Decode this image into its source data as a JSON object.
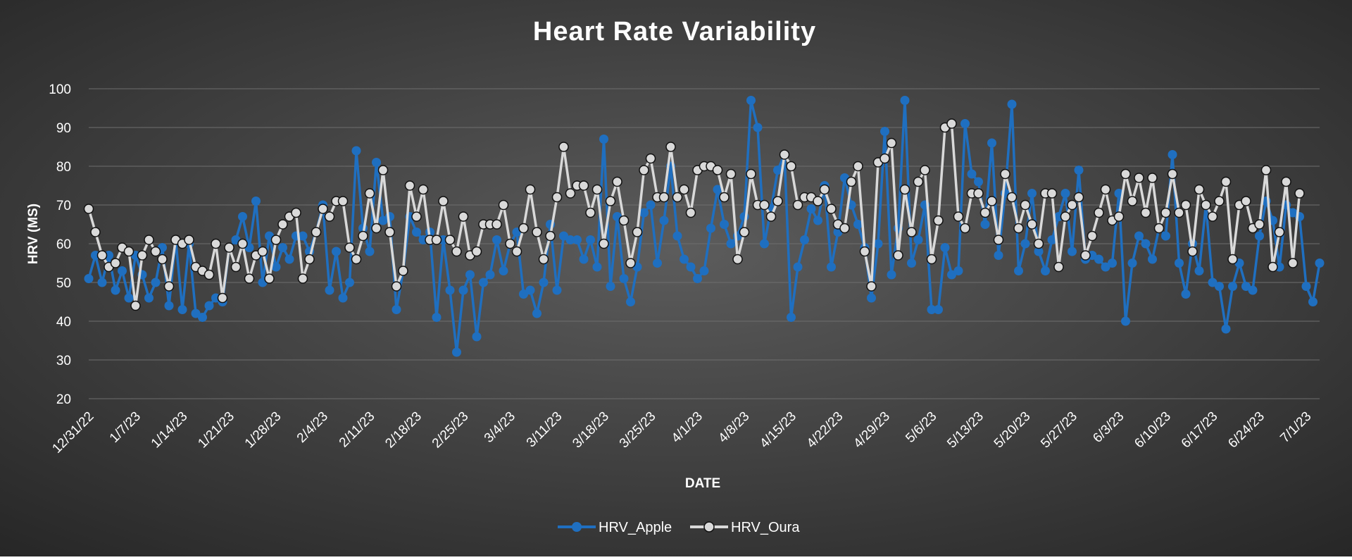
{
  "chart_data": {
    "type": "line",
    "title": "Heart Rate Variability",
    "xlabel": "DATE",
    "ylabel": "HRV (MS)",
    "ylim": [
      20,
      100
    ],
    "yticks": [
      20,
      30,
      40,
      50,
      60,
      70,
      80,
      90,
      100
    ],
    "grid": true,
    "legend_position": "bottom",
    "x_start": "12/31/22",
    "x_tick_labels": [
      "12/31/22",
      "1/7/23",
      "1/14/23",
      "1/21/23",
      "1/28/23",
      "2/4/23",
      "2/11/23",
      "2/18/23",
      "2/25/23",
      "3/4/23",
      "3/11/23",
      "3/18/23",
      "3/25/23",
      "4/1/23",
      "4/8/23",
      "4/15/23",
      "4/22/23",
      "4/29/23",
      "5/6/23",
      "5/13/23",
      "5/20/23",
      "5/27/23",
      "6/3/23",
      "6/10/23",
      "6/17/23",
      "6/24/23",
      "7/1/23"
    ],
    "colors": {
      "background_center": "#5c5c5c",
      "background_edge": "#262626",
      "gridline": "#6e6e6e"
    },
    "series": [
      {
        "name": "HRV_Apple",
        "color": "#1f6fc0",
        "marker": "circle-filled",
        "values": [
          51,
          57,
          50,
          57,
          48,
          53,
          46,
          57,
          52,
          46,
          50,
          59,
          44,
          61,
          43,
          60,
          42,
          41,
          44,
          46,
          45,
          59,
          61,
          67,
          59,
          71,
          50,
          62,
          54,
          59,
          56,
          62,
          62,
          58,
          63,
          70,
          48,
          58,
          46,
          50,
          84,
          64,
          58,
          81,
          66,
          67,
          43,
          53,
          67,
          63,
          61,
          63,
          41,
          61,
          48,
          32,
          48,
          52,
          36,
          50,
          52,
          61,
          53,
          60,
          63,
          47,
          48,
          42,
          50,
          65,
          48,
          62,
          61,
          61,
          56,
          61,
          54,
          87,
          49,
          67,
          51,
          45,
          54,
          68,
          70,
          55,
          66,
          80,
          62,
          56,
          54,
          51,
          53,
          64,
          74,
          65,
          60,
          62,
          67,
          97,
          90,
          60,
          69,
          79,
          83,
          41,
          54,
          61,
          69,
          66,
          75,
          54,
          63,
          77,
          70,
          65,
          59,
          46,
          60,
          89,
          52,
          64,
          97,
          55,
          61,
          70,
          43,
          43,
          59,
          52,
          53,
          91,
          78,
          76,
          65,
          86,
          57,
          73,
          96,
          53,
          60,
          73,
          58,
          53,
          61,
          67,
          73,
          58,
          79,
          56,
          57,
          56,
          54,
          55,
          73,
          40,
          55,
          62,
          60,
          56,
          64,
          62,
          83,
          55,
          47,
          60,
          53,
          70,
          50,
          49,
          38,
          49,
          55,
          49,
          48,
          62,
          71,
          66,
          54,
          70,
          68,
          67,
          49,
          45,
          55
        ]
      },
      {
        "name": "HRV_Oura",
        "color": "#d9d9d9",
        "marker": "circle-outline",
        "values": [
          69,
          63,
          57,
          54,
          55,
          59,
          58,
          44,
          57,
          61,
          58,
          56,
          49,
          61,
          60,
          61,
          54,
          53,
          52,
          60,
          46,
          59,
          54,
          60,
          51,
          57,
          58,
          51,
          61,
          65,
          67,
          68,
          51,
          56,
          63,
          69,
          67,
          71,
          71,
          59,
          56,
          62,
          73,
          64,
          79,
          63,
          49,
          53,
          75,
          67,
          74,
          61,
          61,
          71,
          61,
          58,
          67,
          57,
          58,
          65,
          65,
          65,
          70,
          60,
          58,
          64,
          74,
          63,
          56,
          62,
          72,
          85,
          73,
          75,
          75,
          68,
          74,
          60,
          71,
          76,
          66,
          55,
          63,
          79,
          82,
          72,
          72,
          85,
          72,
          74,
          68,
          79,
          80,
          80,
          79,
          72,
          78,
          56,
          63,
          78,
          70,
          70,
          67,
          71,
          83,
          80,
          70,
          72,
          72,
          71,
          74,
          69,
          65,
          64,
          76,
          80,
          58,
          49,
          81,
          82,
          86,
          57,
          74,
          63,
          76,
          79,
          56,
          66,
          90,
          91,
          67,
          64,
          73,
          73,
          68,
          71,
          61,
          78,
          72,
          64,
          70,
          65,
          60,
          73,
          73,
          54,
          67,
          70,
          72,
          57,
          62,
          68,
          74,
          66,
          67,
          78,
          71,
          77,
          68,
          77,
          64,
          68,
          78,
          68,
          70,
          58,
          74,
          70,
          67,
          71,
          76,
          56,
          70,
          71,
          64,
          65,
          79,
          54,
          63,
          76,
          55,
          73
        ]
      }
    ]
  }
}
